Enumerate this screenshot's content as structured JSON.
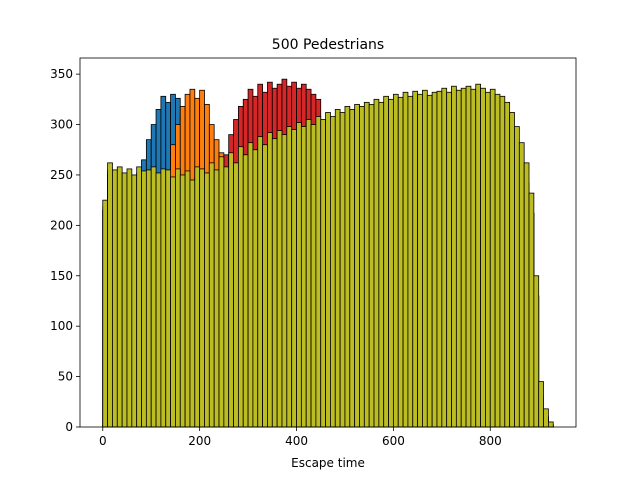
{
  "chart_data": {
    "type": "histogram",
    "title": "500 Pedestrians",
    "x_label": "Escape time",
    "bins": [
      0,
      10,
      20,
      30,
      40,
      50,
      60,
      70,
      80,
      90,
      100,
      110,
      120,
      130,
      140,
      150,
      160,
      170,
      180,
      190,
      200,
      210,
      220,
      230,
      240,
      250,
      260,
      270,
      280,
      290,
      300,
      310,
      320,
      330,
      340,
      350,
      360,
      370,
      380,
      390,
      400,
      410,
      420,
      430,
      440,
      450,
      460,
      470,
      480,
      490,
      500,
      510,
      520,
      530,
      540,
      550,
      560,
      570,
      580,
      590,
      600,
      610,
      620,
      630,
      640,
      650,
      660,
      670,
      680,
      690,
      700,
      710,
      720,
      730,
      740,
      750,
      760,
      770,
      780,
      790,
      800,
      810,
      820,
      830,
      840,
      850,
      860,
      870,
      880,
      890,
      900,
      910,
      920,
      930
    ],
    "series": [
      {
        "color": "#1f77b4",
        "values": [
          215,
          250,
          245,
          248,
          242,
          246,
          240,
          248,
          265,
          285,
          300,
          315,
          328,
          322,
          330,
          326,
          310,
          290,
          270,
          262,
          236,
          232,
          242,
          235,
          248,
          238,
          252,
          242,
          258,
          250,
          262,
          255,
          268,
          260,
          272,
          266,
          274,
          270,
          278,
          275,
          282,
          278,
          285,
          280,
          288,
          285,
          292,
          288,
          295,
          292,
          298,
          295,
          300,
          298,
          302,
          300,
          305,
          302,
          308,
          305,
          310,
          307,
          312,
          308,
          313,
          310,
          314,
          309,
          312,
          313,
          316,
          312,
          318,
          314,
          316,
          318,
          315,
          320,
          316,
          312,
          315,
          310,
          308,
          302,
          292,
          278,
          262,
          242,
          212,
          130,
          30,
          10,
          2
        ]
      },
      {
        "color": "#ff7f0e",
        "values": [
          218,
          255,
          250,
          252,
          246,
          250,
          244,
          252,
          248,
          250,
          253,
          248,
          252,
          250,
          280,
          300,
          318,
          330,
          335,
          326,
          334,
          320,
          300,
          285,
          272,
          262,
          252,
          242,
          258,
          250,
          262,
          255,
          268,
          260,
          272,
          266,
          274,
          270,
          278,
          275,
          282,
          278,
          285,
          280,
          288,
          285,
          292,
          288,
          295,
          292,
          298,
          295,
          300,
          298,
          302,
          300,
          305,
          302,
          308,
          305,
          310,
          307,
          312,
          308,
          313,
          310,
          314,
          309,
          312,
          313,
          316,
          312,
          318,
          314,
          316,
          318,
          315,
          320,
          316,
          312,
          315,
          310,
          308,
          302,
          292,
          278,
          262,
          242,
          212,
          130,
          30,
          10,
          2
        ]
      },
      {
        "color": "#d62728",
        "values": [
          215,
          252,
          245,
          248,
          242,
          246,
          240,
          248,
          244,
          245,
          248,
          242,
          246,
          245,
          238,
          246,
          240,
          244,
          235,
          248,
          246,
          242,
          252,
          245,
          258,
          270,
          290,
          305,
          318,
          325,
          335,
          328,
          340,
          332,
          342,
          336,
          340,
          345,
          338,
          342,
          336,
          340,
          335,
          330,
          325,
          285,
          292,
          288,
          295,
          292,
          298,
          295,
          300,
          298,
          302,
          300,
          305,
          302,
          308,
          305,
          310,
          307,
          312,
          308,
          313,
          310,
          314,
          309,
          312,
          313,
          316,
          312,
          318,
          314,
          316,
          318,
          315,
          320,
          316,
          312,
          315,
          310,
          308,
          302,
          292,
          278,
          262,
          242,
          212,
          130,
          30,
          10,
          2
        ]
      },
      {
        "color": "#bcbd22",
        "values": [
          225,
          262,
          255,
          258,
          252,
          256,
          250,
          258,
          254,
          255,
          258,
          252,
          256,
          255,
          248,
          256,
          250,
          254,
          245,
          258,
          256,
          252,
          262,
          255,
          268,
          258,
          272,
          262,
          278,
          270,
          282,
          275,
          288,
          280,
          292,
          286,
          294,
          290,
          298,
          295,
          302,
          298,
          305,
          300,
          308,
          305,
          312,
          308,
          315,
          312,
          318,
          315,
          320,
          318,
          322,
          320,
          325,
          322,
          328,
          325,
          330,
          327,
          332,
          328,
          333,
          330,
          334,
          329,
          332,
          333,
          336,
          332,
          338,
          334,
          336,
          338,
          335,
          340,
          336,
          332,
          335,
          330,
          328,
          322,
          312,
          298,
          282,
          262,
          232,
          150,
          45,
          18,
          5
        ]
      }
    ],
    "xlim": [
      -47,
      977
    ],
    "ylim": [
      0,
      366
    ],
    "xticks": [
      0,
      200,
      400,
      600,
      800
    ],
    "yticks": [
      0,
      50,
      100,
      150,
      200,
      250,
      300,
      350
    ]
  }
}
